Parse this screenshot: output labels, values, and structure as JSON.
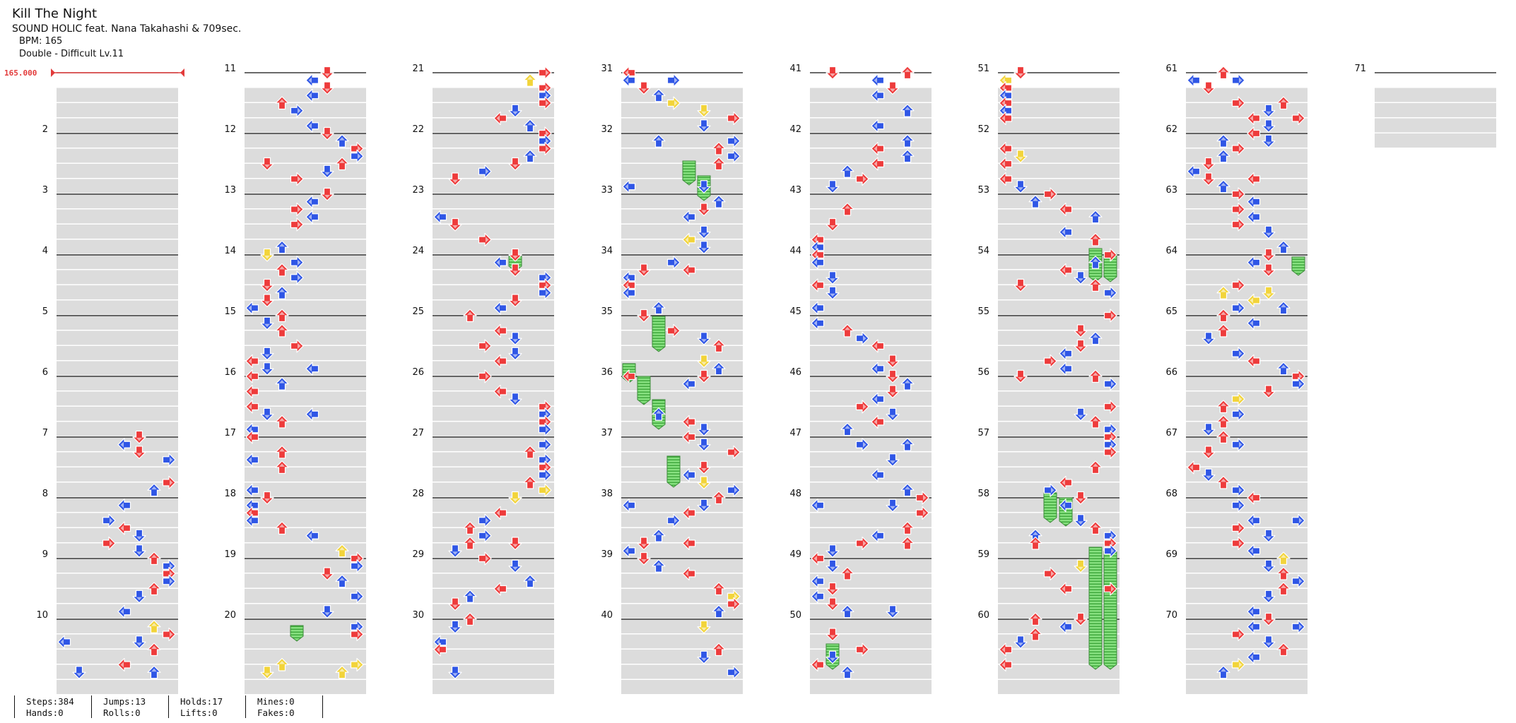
{
  "song": {
    "title": "Kill The Night",
    "artist": "SOUND HOLIC feat. Nana Takahashi & 709sec.",
    "bpm": "BPM: 165",
    "difficulty": "Double - Difficult  Lv.11"
  },
  "bpm_marker": "165.000",
  "measures": [
    "2",
    "3",
    "4",
    "5",
    "6",
    "7",
    "8",
    "9",
    "10",
    "11",
    "12",
    "13",
    "14",
    "15",
    "16",
    "17",
    "18",
    "19",
    "20",
    "21",
    "22",
    "23",
    "24",
    "25",
    "26",
    "27",
    "28",
    "29",
    "30",
    "31",
    "32",
    "33",
    "34",
    "35",
    "36",
    "37",
    "38",
    "39",
    "40",
    "41",
    "42",
    "43",
    "44",
    "45",
    "46",
    "47",
    "48",
    "49",
    "50",
    "51",
    "52",
    "53",
    "54",
    "55",
    "56",
    "57",
    "58",
    "59",
    "60",
    "61",
    "62",
    "63",
    "64",
    "65",
    "66",
    "67",
    "68",
    "69",
    "70",
    "71"
  ],
  "stats": {
    "steps": "Steps:384",
    "jumps": "Jumps:13",
    "holds": "Holds:17",
    "mines": "Mines:0",
    "hands": "Hands:0",
    "rolls": "Rolls:0",
    "lifts": "Lifts:0",
    "fakes": "Fakes:0"
  },
  "colors": {
    "note_4th": "#ee3b3b",
    "note_8th": "#2f56e6",
    "note_16th": "#f2d43a",
    "hold_body": "#7fe07a",
    "stripe": "#dcdcdc"
  },
  "icons": {
    "left": "left-arrow-icon",
    "down": "down-arrow-icon",
    "up": "up-arrow-icon",
    "right": "right-arrow-icon"
  }
}
